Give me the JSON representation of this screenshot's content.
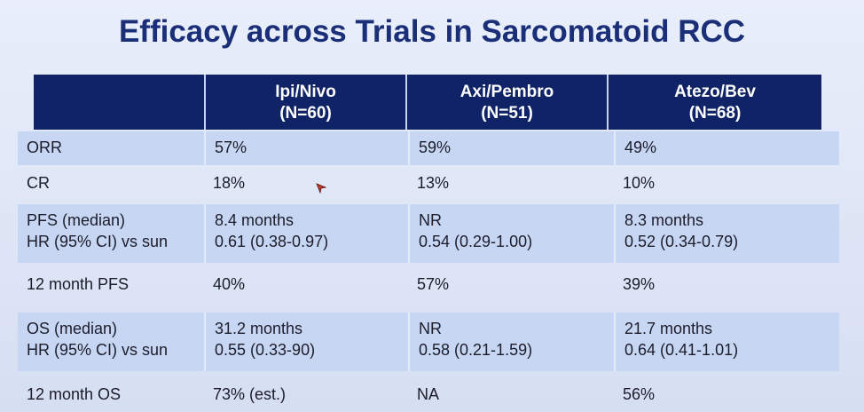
{
  "slide": {
    "title": "Efficacy across Trials in Sarcomatoid RCC"
  },
  "table": {
    "headers": [
      {
        "line1": "",
        "line2": ""
      },
      {
        "line1": "Ipi/Nivo",
        "line2": "(N=60)"
      },
      {
        "line1": "Axi/Pembro",
        "line2": "(N=51)"
      },
      {
        "line1": "Atezo/Bev",
        "line2": "(N=68)"
      }
    ],
    "rows": [
      {
        "cells": [
          [
            "ORR"
          ],
          [
            "57%"
          ],
          [
            "59%"
          ],
          [
            "49%"
          ]
        ]
      },
      {
        "cells": [
          [
            "CR"
          ],
          [
            "18%"
          ],
          [
            "13%"
          ],
          [
            "10%"
          ]
        ]
      },
      {
        "cells": [
          [
            "PFS (median)",
            "HR (95% CI) vs sun"
          ],
          [
            "8.4 months",
            "0.61 (0.38-0.97)"
          ],
          [
            "NR",
            "0.54 (0.29-1.00)"
          ],
          [
            "8.3 months",
            "0.52 (0.34-0.79)"
          ]
        ]
      },
      {
        "cells": [
          [
            "12 month PFS"
          ],
          [
            "40%"
          ],
          [
            "57%"
          ],
          [
            "39%"
          ]
        ]
      },
      {
        "cells": [
          [
            "OS (median)",
            "HR (95% CI) vs sun"
          ],
          [
            "31.2 months",
            "0.55 (0.33-90)"
          ],
          [
            "NR",
            "0.58 (0.21-1.59)"
          ],
          [
            "21.7 months",
            "0.64 (0.41-1.01)"
          ]
        ]
      },
      {
        "cells": [
          [
            "12 month OS"
          ],
          [
            "73% (est.)"
          ],
          [
            "NA"
          ],
          [
            "56%"
          ]
        ]
      }
    ]
  },
  "colors": {
    "header_bg": "#0f2366",
    "title": "#1b2f78",
    "band": "#c7d7f3",
    "cursor": "#c0392b"
  },
  "icons": {
    "cursor": "pointer-cursor-icon"
  }
}
